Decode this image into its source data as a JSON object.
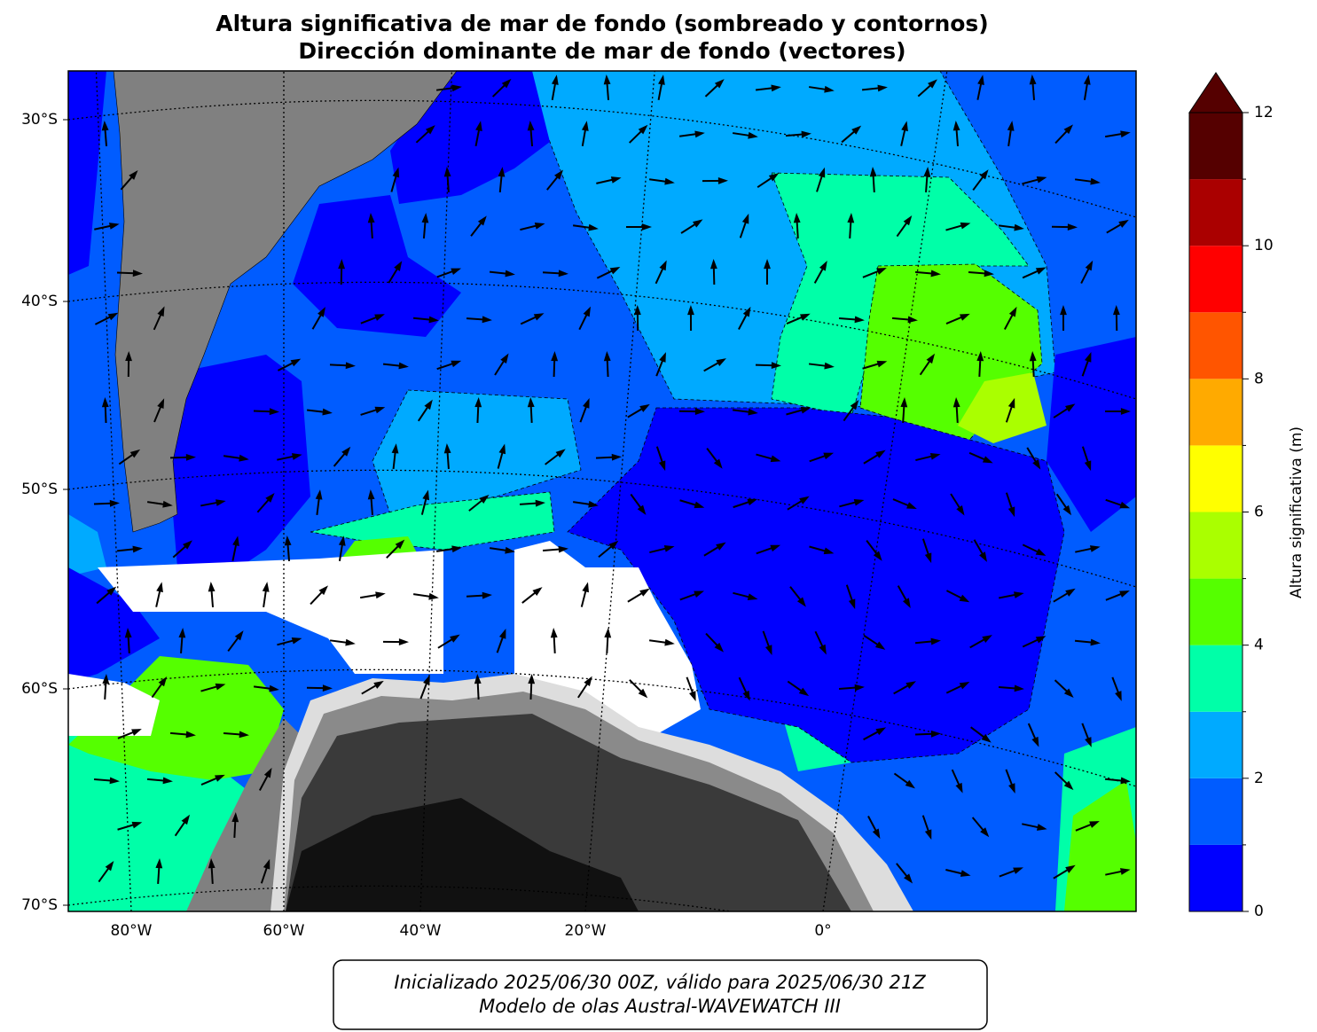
{
  "title": [
    "Altura significativa de mar de fondo (sombreado y contornos)",
    "Dirección dominante de mar de fondo (vectores)"
  ],
  "map": {
    "lat_ticks": [
      {
        "value": -30,
        "label": "30°S"
      },
      {
        "value": -40,
        "label": "40°S"
      },
      {
        "value": -50,
        "label": "50°S"
      },
      {
        "value": -60,
        "label": "60°S"
      },
      {
        "value": -70,
        "label": "70°S"
      }
    ],
    "lon_ticks": [
      {
        "value": -80,
        "label": "80°W"
      },
      {
        "value": -60,
        "label": "60°W"
      },
      {
        "value": -40,
        "label": "40°W"
      },
      {
        "value": -20,
        "label": "20°W"
      },
      {
        "value": 0,
        "label": "0°"
      }
    ]
  },
  "colorbar": {
    "label": "Altura significativa (m)",
    "levels": [
      0,
      1,
      2,
      3,
      4,
      5,
      6,
      7,
      8,
      9,
      10,
      11,
      12
    ],
    "colors": [
      "#0000ff",
      "#005cff",
      "#00aaff",
      "#00ffa8",
      "#55ff00",
      "#aaff00",
      "#ffff00",
      "#ffaa00",
      "#ff5500",
      "#ff0000",
      "#aa0000",
      "#550000"
    ],
    "extend": "max",
    "extend_color": "#550000",
    "ticks": [
      0,
      2,
      4,
      6,
      8,
      10,
      12
    ],
    "minor_ticks": [
      1,
      3,
      5,
      7,
      9,
      11
    ]
  },
  "footer": [
    "Inicializado 2025/06/30 00Z, válido para 2025/06/30 21Z",
    "Modelo de olas Austral-WAVEWATCH III"
  ]
}
